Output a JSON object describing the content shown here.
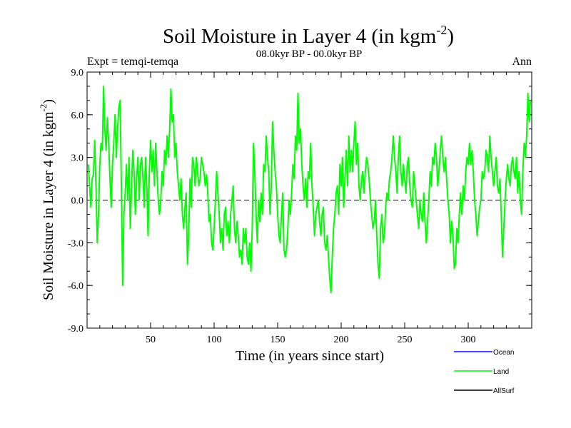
{
  "chart_data": {
    "type": "line",
    "title": "Soil Moisture in Layer 4 (in kgm",
    "title_sup": "-2",
    "title_close": ")",
    "subtitle": "08.0kyr BP - 00.0kyr BP",
    "left_label": "Expt = temqi-temqa",
    "right_label": "Ann",
    "xlabel": "Time (in years since start)",
    "ylabel": "Soil Moisture in Layer 4 (in kgm",
    "ylabel_sup": "-2",
    "ylabel_close": ")",
    "xlim": [
      0,
      350
    ],
    "ylim": [
      -9,
      9
    ],
    "x_ticks": [
      50,
      100,
      150,
      200,
      250,
      300
    ],
    "x_tick_labels": [
      "50",
      "100",
      "150",
      "200",
      "250",
      "300"
    ],
    "y_ticks": [
      -9,
      -6,
      -3,
      0,
      3,
      6,
      9
    ],
    "y_tick_labels": [
      "-9.0",
      "-6.0",
      "-3.0",
      "0.0",
      "3.0",
      "6.0",
      "9.0"
    ],
    "reference_line": 0,
    "legend": [
      {
        "name": "Ocean",
        "color": "#0000ff"
      },
      {
        "name": "Land",
        "color": "#00ff00"
      },
      {
        "name": "AllSurf",
        "color": "#000000"
      }
    ],
    "series": [
      {
        "name": "Land",
        "color": "#00ff00",
        "x_start": 1,
        "x_step": 1,
        "values": [
          2.5,
          1.0,
          -0.5,
          1.5,
          1.8,
          4.2,
          1.0,
          -3.0,
          -1.0,
          2.5,
          4.0,
          3.5,
          8.0,
          5.0,
          3.5,
          5.8,
          4.0,
          1.5,
          -0.5,
          2.5,
          4.0,
          6.0,
          3.0,
          5.0,
          6.5,
          7.0,
          1.0,
          -6.0,
          -1.0,
          0.5,
          2.5,
          0.0,
          3.0,
          -2.0,
          1.0,
          3.5,
          2.0,
          -1.0,
          1.5,
          3.0,
          0.0,
          2.5,
          3.0,
          1.5,
          -0.5,
          3.0,
          1.0,
          -2.5,
          2.0,
          4.2,
          2.0,
          3.5,
          1.0,
          4.0,
          2.0,
          0.0,
          -1.0,
          0.0,
          2.0,
          1.0,
          3.5,
          2.5,
          4.5,
          3.0,
          5.0,
          7.8,
          5.5,
          6.0,
          3.0,
          4.0,
          2.0,
          1.0,
          0.0,
          1.5,
          -1.0,
          -2.0,
          -0.5,
          0.5,
          -4.5,
          -2.5,
          1.5,
          -0.5,
          3.0,
          2.5,
          1.0,
          3.0,
          2.0,
          1.0,
          1.5,
          3.0,
          2.5,
          2.0,
          1.0,
          1.8,
          0.5,
          -1.5,
          -1.0,
          -3.0,
          -3.5,
          -2.0,
          0.0,
          2.0,
          0.5,
          -1.0,
          -3.0,
          -2.0,
          -3.5,
          -1.0,
          -0.5,
          -2.5,
          -1.5,
          -3.0,
          -1.0,
          0.0,
          1.0,
          -2.0,
          -3.0,
          -1.5,
          -2.5,
          -4.0,
          -3.5,
          -4.5,
          -2.0,
          -3.0,
          -2.0,
          -4.0,
          -4.5,
          -3.0,
          -5.0,
          -2.0,
          4.0,
          2.0,
          -1.0,
          -3.0,
          0.0,
          -1.5,
          0.5,
          -1.0,
          2.5,
          2.0,
          4.5,
          3.0,
          2.0,
          -1.0,
          1.0,
          5.5,
          3.5,
          2.0,
          1.0,
          -1.0,
          -2.5,
          -3.0,
          -1.0,
          0.5,
          -3.5,
          -4.0,
          -3.5,
          -2.0,
          0.0,
          -1.0,
          0.5,
          2.5,
          1.5,
          4.5,
          3.5,
          7.5,
          4.0,
          5.0,
          2.5,
          1.0,
          0.0,
          1.5,
          -0.5,
          2.0,
          1.5,
          4.0,
          1.0,
          -0.5,
          -2.5,
          -1.0,
          -0.5,
          0.0,
          -1.5,
          -2.5,
          -1.0,
          -0.5,
          -3.0,
          -3.5,
          -2.5,
          -4.0,
          -5.5,
          -6.5,
          -4.0,
          -2.0,
          -1.0,
          0.5,
          1.0,
          -1.0,
          2.5,
          1.0,
          3.0,
          -0.5,
          1.5,
          3.5,
          1.0,
          4.5,
          2.0,
          3.5,
          2.0,
          4.0,
          5.5,
          2.5,
          4.0,
          1.0,
          0.0,
          1.5,
          2.0,
          0.5,
          2.0,
          3.0,
          2.5,
          1.5,
          0.0,
          -1.0,
          -2.0,
          -1.5,
          0.0,
          -2.5,
          -4.5,
          -5.5,
          -2.0,
          -1.0,
          -3.0,
          -2.5,
          -0.5,
          0.5,
          0.0,
          1.5,
          2.0,
          3.0,
          4.5,
          3.0,
          2.0,
          0.5,
          3.0,
          4.5,
          2.0,
          1.0,
          2.5,
          1.5,
          0.5,
          2.5,
          3.0,
          1.0,
          0.0,
          -0.5,
          2.0,
          1.0,
          0.0,
          -1.0,
          -2.0,
          0.0,
          -1.0,
          -1.5,
          0.5,
          -1.5,
          -3.0,
          -1.5,
          0.0,
          2.0,
          1.0,
          3.0,
          2.5,
          4.0,
          3.0,
          1.0,
          2.0,
          3.5,
          4.5,
          3.0,
          2.0,
          3.0,
          1.5,
          0.0,
          -1.0,
          -3.0,
          -1.5,
          -2.5,
          -4.8,
          -4.5,
          -2.0,
          -3.0,
          -1.0,
          0.5,
          -1.0,
          1.0,
          0.0,
          2.0,
          3.0,
          2.5,
          4.0,
          2.5,
          3.5,
          2.0,
          0.0,
          -1.0,
          -2.5,
          -1.5,
          -0.5,
          0.0,
          2.0,
          1.5,
          2.0,
          3.5,
          3.0,
          2.0,
          4.5,
          3.0,
          2.0,
          1.0,
          2.0,
          3.0,
          1.0,
          0.5,
          1.5,
          -1.0,
          -4.0,
          -2.0,
          0.0,
          1.5,
          2.5,
          1.5,
          1.0,
          2.5,
          3.0,
          2.0,
          1.5,
          3.0,
          0.5,
          2.0,
          0.0,
          -1.0,
          2.0,
          4.0,
          3.0,
          4.5,
          7.5,
          5.5,
          7.0
        ]
      }
    ]
  }
}
